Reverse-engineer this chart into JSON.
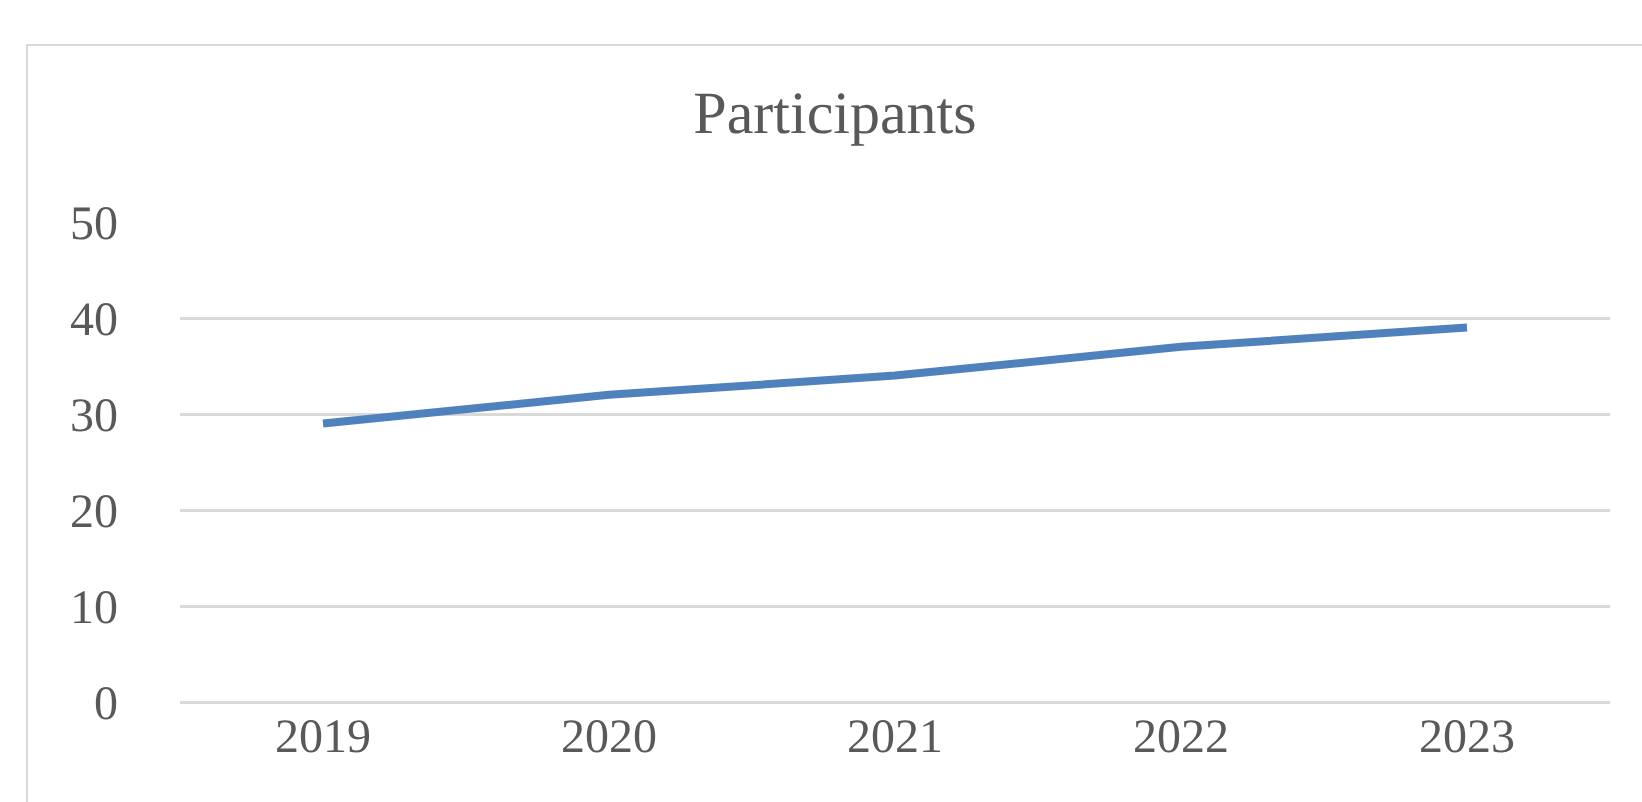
{
  "chart_data": {
    "type": "line",
    "title": "Participants",
    "categories": [
      "2019",
      "2020",
      "2021",
      "2022",
      "2023"
    ],
    "series": [
      {
        "color": "#4f81bd",
        "values": [
          29,
          32,
          34,
          37,
          39
        ]
      }
    ],
    "ylim": [
      0,
      50
    ],
    "yticks": [
      0,
      10,
      20,
      30,
      40,
      50
    ],
    "grid": "y",
    "marker": "none",
    "line_style": "solid"
  }
}
